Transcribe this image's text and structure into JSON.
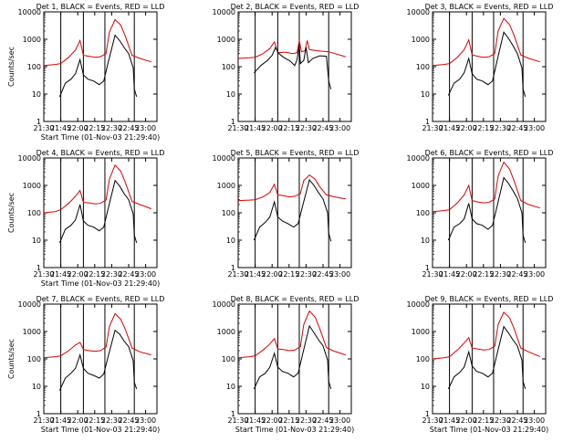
{
  "figure": {
    "ytick_labels": [
      "10000",
      "1000",
      "100",
      "10",
      "1"
    ],
    "xtick_labels": [
      "21:30",
      "21:45",
      "22:00",
      "22:15",
      "22:30",
      "22:45",
      "23:00"
    ],
    "colors": {
      "events": "#000000",
      "lld": "#dd0000",
      "axes": "#000000",
      "background": "#ffffff"
    }
  },
  "chart_data": [
    {
      "type": "line",
      "title": "Det 1, BLACK = Events, RED = LLD",
      "xlabel": "Start Time (01-Nov-03 21:29:40)",
      "ylabel": "Counts/sec",
      "yscale": "log",
      "ylim": [
        1,
        10000
      ],
      "xlim": [
        "21:30",
        "23:10"
      ],
      "event_markers": [
        "21:45",
        "22:05",
        "22:24",
        "22:50"
      ],
      "events": {
        "x": [
          "21:44",
          "21:49",
          "21:54",
          "21:58",
          "22:02",
          "22:05",
          "22:09",
          "22:14",
          "22:19",
          "22:23",
          "22:27",
          "22:33",
          "22:37",
          "22:41",
          "22:45",
          "22:49",
          "22:50",
          "22:52"
        ],
        "y": [
          8,
          25,
          35,
          55,
          180,
          50,
          35,
          30,
          22,
          30,
          150,
          1400,
          900,
          500,
          300,
          90,
          15,
          8
        ]
      },
      "lld": {
        "x": [
          "21:30",
          "21:40",
          "21:45",
          "21:52",
          "21:58",
          "22:02",
          "22:05",
          "22:10",
          "22:15",
          "22:20",
          "22:25",
          "22:28",
          "22:33",
          "22:38",
          "22:42",
          "22:48",
          "22:55",
          "23:05"
        ],
        "y": [
          110,
          120,
          130,
          220,
          400,
          900,
          260,
          240,
          220,
          230,
          300,
          1800,
          5200,
          3300,
          1300,
          260,
          200,
          150
        ]
      }
    },
    {
      "type": "line",
      "title": "Det 2, BLACK = Events, RED = LLD",
      "xlabel": "",
      "ylabel": "",
      "yscale": "log",
      "ylim": [
        1,
        10000
      ],
      "xlim": [
        "21:30",
        "23:10"
      ],
      "event_markers": [
        "21:45",
        "22:05",
        "22:24",
        "22:50"
      ],
      "events": {
        "x": [
          "21:44",
          "21:50",
          "21:56",
          "22:00",
          "22:03",
          "22:06",
          "22:10",
          "22:16",
          "22:20",
          "22:22",
          "22:24",
          "22:25",
          "22:28",
          "22:30",
          "22:32",
          "22:36",
          "22:42",
          "22:48",
          "22:50",
          "22:52"
        ],
        "y": [
          60,
          110,
          170,
          260,
          500,
          300,
          220,
          160,
          110,
          180,
          600,
          130,
          170,
          500,
          140,
          200,
          250,
          240,
          30,
          15
        ]
      },
      "lld": {
        "x": [
          "21:30",
          "21:40",
          "21:45",
          "21:52",
          "21:58",
          "22:02",
          "22:05",
          "22:12",
          "22:18",
          "22:22",
          "22:24",
          "22:26",
          "22:29",
          "22:31",
          "22:33",
          "22:40",
          "22:50",
          "23:05"
        ],
        "y": [
          200,
          210,
          220,
          300,
          460,
          800,
          320,
          340,
          300,
          320,
          900,
          350,
          380,
          900,
          420,
          380,
          350,
          230
        ]
      }
    },
    {
      "type": "line",
      "title": "Det 3, BLACK = Events, RED = LLD",
      "xlabel": "",
      "ylabel": "",
      "yscale": "log",
      "ylim": [
        1,
        10000
      ],
      "xlim": [
        "21:30",
        "23:10"
      ],
      "event_markers": [
        "21:45",
        "22:05",
        "22:24",
        "22:50"
      ],
      "events": {
        "x": [
          "21:44",
          "21:49",
          "21:54",
          "21:58",
          "22:02",
          "22:05",
          "22:09",
          "22:14",
          "22:19",
          "22:23",
          "22:27",
          "22:33",
          "22:37",
          "22:41",
          "22:45",
          "22:49",
          "22:50",
          "22:52"
        ],
        "y": [
          9,
          25,
          35,
          60,
          200,
          55,
          35,
          30,
          22,
          30,
          160,
          1800,
          1100,
          600,
          300,
          90,
          15,
          8
        ]
      },
      "lld": {
        "x": [
          "21:30",
          "21:40",
          "21:45",
          "21:52",
          "21:58",
          "22:02",
          "22:05",
          "22:10",
          "22:15",
          "22:20",
          "22:25",
          "22:28",
          "22:33",
          "22:38",
          "22:42",
          "22:48",
          "22:55",
          "23:05"
        ],
        "y": [
          110,
          120,
          130,
          220,
          420,
          950,
          270,
          240,
          220,
          230,
          300,
          2000,
          5800,
          3500,
          1400,
          270,
          200,
          150
        ]
      }
    },
    {
      "type": "line",
      "title": "Det 4, BLACK = Events, RED = LLD",
      "xlabel": "Start Time (01-Nov-03 21:29:40)",
      "ylabel": "Counts/sec",
      "yscale": "log",
      "ylim": [
        1,
        10000
      ],
      "xlim": [
        "21:30",
        "23:10"
      ],
      "event_markers": [
        "21:45",
        "22:05",
        "22:24",
        "22:50"
      ],
      "events": {
        "x": [
          "21:44",
          "21:49",
          "21:54",
          "21:58",
          "22:02",
          "22:05",
          "22:09",
          "22:14",
          "22:19",
          "22:23",
          "22:27",
          "22:33",
          "22:37",
          "22:41",
          "22:45",
          "22:49",
          "22:50",
          "22:52"
        ],
        "y": [
          8,
          25,
          35,
          55,
          200,
          50,
          35,
          30,
          22,
          30,
          150,
          1500,
          950,
          500,
          300,
          90,
          15,
          8
        ]
      },
      "lld": {
        "x": [
          "21:30",
          "21:40",
          "21:45",
          "21:52",
          "21:58",
          "22:02",
          "22:05",
          "22:10",
          "22:15",
          "22:20",
          "22:25",
          "22:28",
          "22:33",
          "22:38",
          "22:42",
          "22:48",
          "22:55",
          "23:05"
        ],
        "y": [
          100,
          110,
          130,
          220,
          400,
          650,
          240,
          230,
          210,
          220,
          290,
          1700,
          5500,
          3300,
          1300,
          260,
          200,
          140
        ]
      }
    },
    {
      "type": "line",
      "title": "Det 5, BLACK = Events, RED = LLD",
      "xlabel": "",
      "ylabel": "",
      "yscale": "log",
      "ylim": [
        1,
        10000
      ],
      "xlim": [
        "21:30",
        "23:10"
      ],
      "event_markers": [
        "21:45",
        "22:05",
        "22:24",
        "22:50"
      ],
      "events": {
        "x": [
          "21:44",
          "21:49",
          "21:54",
          "21:58",
          "22:02",
          "22:05",
          "22:09",
          "22:14",
          "22:19",
          "22:23",
          "22:27",
          "22:33",
          "22:37",
          "22:41",
          "22:45",
          "22:49",
          "22:50",
          "22:52"
        ],
        "y": [
          10,
          30,
          45,
          70,
          250,
          70,
          50,
          40,
          30,
          40,
          180,
          1600,
          1000,
          550,
          320,
          100,
          18,
          9
        ]
      },
      "lld": {
        "x": [
          "21:30",
          "21:40",
          "21:45",
          "21:52",
          "21:58",
          "22:02",
          "22:05",
          "22:10",
          "22:15",
          "22:20",
          "22:25",
          "22:28",
          "22:33",
          "22:38",
          "22:42",
          "22:48",
          "22:55",
          "23:05"
        ],
        "y": [
          280,
          290,
          300,
          380,
          550,
          1100,
          450,
          420,
          380,
          400,
          500,
          1500,
          2400,
          1700,
          900,
          450,
          380,
          320
        ]
      }
    },
    {
      "type": "line",
      "title": "Det 6, BLACK = Events, RED = LLD",
      "xlabel": "",
      "ylabel": "",
      "yscale": "log",
      "ylim": [
        1,
        10000
      ],
      "xlim": [
        "21:30",
        "23:10"
      ],
      "event_markers": [
        "21:45",
        "22:05",
        "22:24",
        "22:50"
      ],
      "events": {
        "x": [
          "21:44",
          "21:49",
          "21:54",
          "21:58",
          "22:02",
          "22:05",
          "22:09",
          "22:14",
          "22:19",
          "22:23",
          "22:27",
          "22:33",
          "22:37",
          "22:41",
          "22:45",
          "22:49",
          "22:50",
          "22:52"
        ],
        "y": [
          10,
          30,
          40,
          60,
          220,
          60,
          40,
          35,
          25,
          35,
          170,
          1900,
          1200,
          650,
          330,
          100,
          15,
          8
        ]
      },
      "lld": {
        "x": [
          "21:30",
          "21:40",
          "21:45",
          "21:52",
          "21:58",
          "22:02",
          "22:05",
          "22:10",
          "22:15",
          "22:20",
          "22:25",
          "22:28",
          "22:33",
          "22:38",
          "22:42",
          "22:48",
          "22:55",
          "23:05"
        ],
        "y": [
          110,
          120,
          130,
          230,
          450,
          1000,
          280,
          250,
          230,
          240,
          320,
          2200,
          7000,
          4000,
          1500,
          280,
          200,
          150
        ]
      }
    },
    {
      "type": "line",
      "title": "Det 7, BLACK = Events, RED = LLD",
      "xlabel": "Start Time (01-Nov-03 21:29:40)",
      "ylabel": "Counts/sec",
      "yscale": "log",
      "ylim": [
        1,
        10000
      ],
      "xlim": [
        "21:30",
        "23:10"
      ],
      "event_markers": [
        "21:45",
        "22:05",
        "22:24",
        "22:50"
      ],
      "events": {
        "x": [
          "21:44",
          "21:49",
          "21:54",
          "21:58",
          "22:02",
          "22:05",
          "22:09",
          "22:14",
          "22:19",
          "22:23",
          "22:27",
          "22:33",
          "22:37",
          "22:41",
          "22:45",
          "22:49",
          "22:50",
          "22:52"
        ],
        "y": [
          7,
          20,
          30,
          45,
          140,
          45,
          30,
          25,
          20,
          28,
          130,
          1100,
          800,
          450,
          280,
          85,
          14,
          8
        ]
      },
      "lld": {
        "x": [
          "21:30",
          "21:40",
          "21:45",
          "21:52",
          "21:58",
          "22:02",
          "22:05",
          "22:10",
          "22:15",
          "22:20",
          "22:25",
          "22:28",
          "22:33",
          "22:38",
          "22:42",
          "22:48",
          "22:55",
          "23:05"
        ],
        "y": [
          110,
          120,
          130,
          200,
          320,
          400,
          220,
          200,
          190,
          200,
          270,
          1500,
          4500,
          2800,
          1200,
          250,
          180,
          140
        ]
      }
    },
    {
      "type": "line",
      "title": "Det 8, BLACK = Events, RED = LLD",
      "xlabel": "Start Time (01-Nov-03 21:29:40)",
      "ylabel": "",
      "yscale": "log",
      "ylim": [
        1,
        10000
      ],
      "xlim": [
        "21:30",
        "23:10"
      ],
      "event_markers": [
        "21:45",
        "22:05",
        "22:24",
        "22:50"
      ],
      "events": {
        "x": [
          "21:44",
          "21:49",
          "21:54",
          "21:58",
          "22:02",
          "22:05",
          "22:09",
          "22:14",
          "22:19",
          "22:23",
          "22:27",
          "22:33",
          "22:37",
          "22:41",
          "22:45",
          "22:49",
          "22:50",
          "22:52"
        ],
        "y": [
          8,
          22,
          30,
          50,
          160,
          50,
          35,
          30,
          22,
          30,
          150,
          1600,
          900,
          500,
          300,
          90,
          15,
          8
        ]
      },
      "lld": {
        "x": [
          "21:30",
          "21:40",
          "21:45",
          "21:52",
          "21:58",
          "22:02",
          "22:05",
          "22:10",
          "22:15",
          "22:20",
          "22:25",
          "22:28",
          "22:33",
          "22:38",
          "22:42",
          "22:48",
          "22:55",
          "23:05"
        ],
        "y": [
          110,
          120,
          130,
          210,
          350,
          550,
          230,
          220,
          200,
          210,
          280,
          1800,
          5600,
          3400,
          1300,
          260,
          190,
          140
        ]
      }
    },
    {
      "type": "line",
      "title": "Det 9, BLACK = Events, RED = LLD",
      "xlabel": "Start Time (01-Nov-03 21:29:40)",
      "ylabel": "",
      "yscale": "log",
      "ylim": [
        1,
        10000
      ],
      "xlim": [
        "21:30",
        "23:10"
      ],
      "event_markers": [
        "21:45",
        "22:05",
        "22:24",
        "22:50"
      ],
      "events": {
        "x": [
          "21:44",
          "21:49",
          "21:54",
          "21:58",
          "22:02",
          "22:05",
          "22:09",
          "22:14",
          "22:19",
          "22:23",
          "22:27",
          "22:33",
          "22:37",
          "22:41",
          "22:45",
          "22:49",
          "22:50",
          "22:52"
        ],
        "y": [
          8,
          22,
          32,
          50,
          180,
          55,
          35,
          30,
          22,
          30,
          150,
          1500,
          900,
          500,
          300,
          90,
          15,
          8
        ]
      },
      "lld": {
        "x": [
          "21:30",
          "21:40",
          "21:45",
          "21:52",
          "21:58",
          "22:02",
          "22:05",
          "22:10",
          "22:15",
          "22:20",
          "22:25",
          "22:28",
          "22:33",
          "22:38",
          "22:42",
          "22:48",
          "22:55",
          "23:05"
        ],
        "y": [
          100,
          110,
          120,
          210,
          380,
          600,
          250,
          230,
          210,
          220,
          290,
          1800,
          5000,
          3200,
          1300,
          250,
          180,
          120
        ]
      }
    }
  ]
}
